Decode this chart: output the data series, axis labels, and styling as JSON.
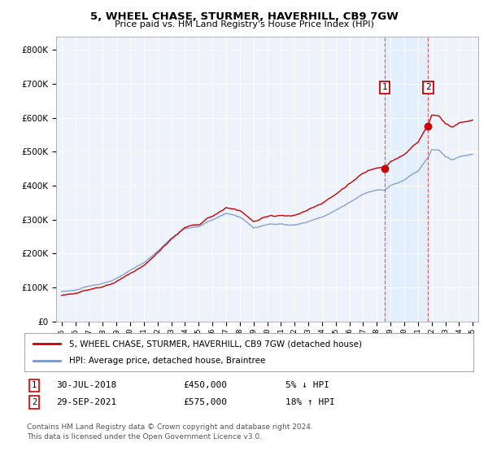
{
  "title": "5, WHEEL CHASE, STURMER, HAVERHILL, CB9 7GW",
  "subtitle": "Price paid vs. HM Land Registry's House Price Index (HPI)",
  "ylim": [
    0,
    840000
  ],
  "yticks": [
    0,
    100000,
    200000,
    300000,
    400000,
    500000,
    600000,
    700000,
    800000
  ],
  "background_color": "#ffffff",
  "plot_bg_color": "#eef2fb",
  "grid_color": "#ffffff",
  "sale1_year": 2018.58,
  "sale1_price": 450000,
  "sale2_year": 2021.75,
  "sale2_price": 575000,
  "legend_line1": "5, WHEEL CHASE, STURMER, HAVERHILL, CB9 7GW (detached house)",
  "legend_line2": "HPI: Average price, detached house, Braintree",
  "footer": "Contains HM Land Registry data © Crown copyright and database right 2024.\nThis data is licensed under the Open Government Licence v3.0.",
  "hpi_line_color": "#7799cc",
  "price_line_color": "#cc0000",
  "shade_color": "#ddeeff",
  "vline_color": "#dd4444"
}
